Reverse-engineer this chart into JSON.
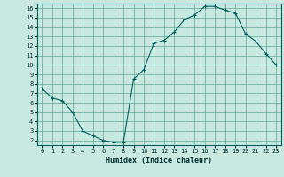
{
  "x": [
    0,
    1,
    2,
    3,
    4,
    5,
    6,
    7,
    8,
    9,
    10,
    11,
    12,
    13,
    14,
    15,
    16,
    17,
    18,
    19,
    20,
    21,
    22,
    23
  ],
  "y": [
    7.5,
    6.5,
    6.2,
    5.0,
    3.0,
    2.5,
    2.0,
    1.8,
    1.8,
    8.5,
    9.5,
    12.3,
    12.6,
    13.5,
    14.8,
    15.3,
    16.2,
    16.2,
    15.8,
    15.5,
    13.3,
    12.5,
    11.2,
    10.0
  ],
  "line_color": "#006060",
  "marker": "+",
  "bg_color": "#c8e8e0",
  "grid_color": "#60a898",
  "xlabel": "Humidex (Indice chaleur)",
  "ylim": [
    1.5,
    16.5
  ],
  "xlim": [
    -0.5,
    23.5
  ],
  "yticks": [
    2,
    3,
    4,
    5,
    6,
    7,
    8,
    9,
    10,
    11,
    12,
    13,
    14,
    15,
    16
  ],
  "xticks": [
    0,
    1,
    2,
    3,
    4,
    5,
    6,
    7,
    8,
    9,
    10,
    11,
    12,
    13,
    14,
    15,
    16,
    17,
    18,
    19,
    20,
    21,
    22,
    23
  ]
}
